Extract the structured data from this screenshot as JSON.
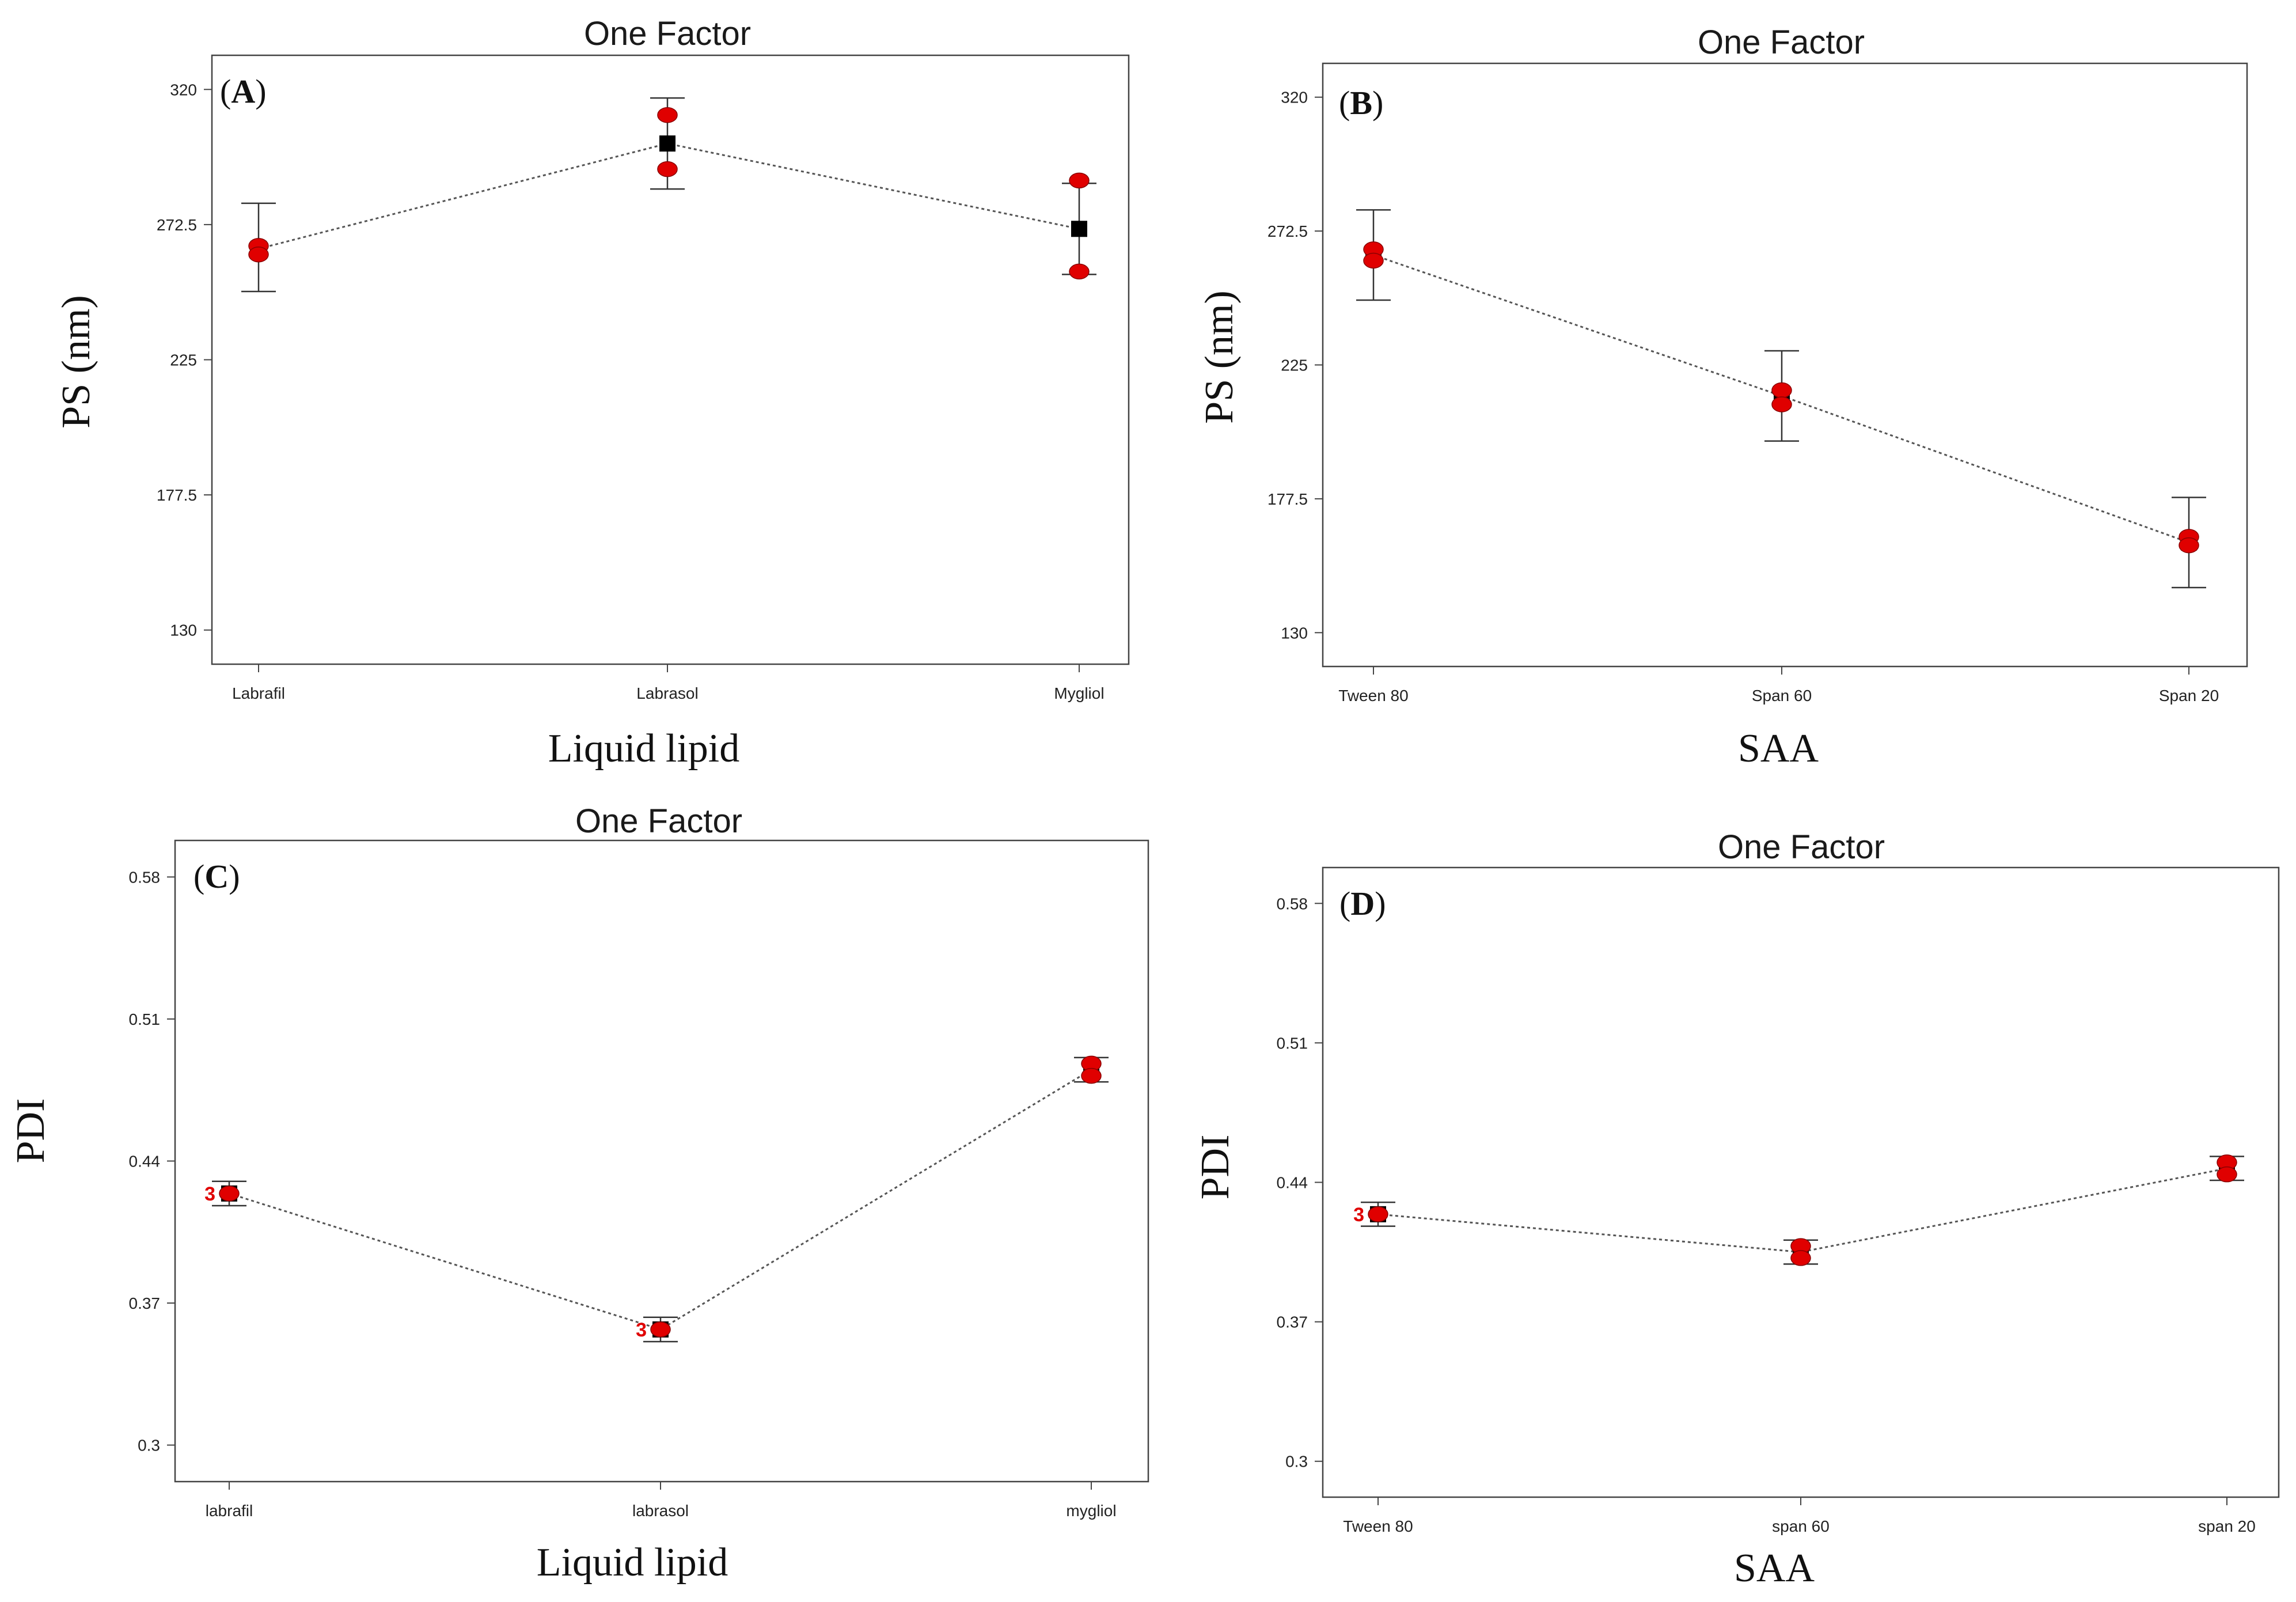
{
  "chart_data": [
    {
      "type": "line",
      "panel": "A",
      "title": "One Factor",
      "xlabel": "Liquid lipid",
      "ylabel": "PS (nm)",
      "categories": [
        "Labrafil",
        "Labrasol",
        "Mygliol"
      ],
      "y_ticks": [
        "130",
        "177.5",
        "225",
        "272.5",
        "320"
      ],
      "ylim": [
        118,
        332
      ],
      "predicted": [
        264,
        301,
        271
      ],
      "ci_low": [
        249,
        285,
        255
      ],
      "ci_high": [
        280,
        317,
        287
      ],
      "observed": [
        [
          265,
          262
        ],
        [
          311,
          292
        ],
        [
          288,
          256
        ]
      ],
      "replicate_labels": [
        "",
        "",
        ""
      ],
      "colors": {
        "point": "#e00000",
        "mean": "#000000",
        "line": "#555555"
      }
    },
    {
      "type": "line",
      "panel": "B",
      "title": "One Factor",
      "xlabel": "SAA",
      "ylabel": "PS (nm)",
      "categories": [
        "Tween 80",
        "Span 60",
        "Span 20"
      ],
      "y_ticks": [
        "130",
        "177.5",
        "225",
        "272.5",
        "320"
      ],
      "ylim": [
        118,
        332
      ],
      "predicted": [
        264,
        214,
        162
      ],
      "ci_low": [
        248,
        198,
        146
      ],
      "ci_high": [
        280,
        230,
        178
      ],
      "observed": [
        [
          266,
          262
        ],
        [
          216,
          211
        ],
        [
          164,
          161
        ]
      ],
      "replicate_labels": [
        "",
        "",
        ""
      ],
      "colors": {
        "point": "#e00000",
        "mean": "#000000",
        "line": "#555555"
      }
    },
    {
      "type": "line",
      "panel": "C",
      "title": "One Factor",
      "xlabel": "Liquid lipid",
      "ylabel": "PDI",
      "categories": [
        "labrafil",
        "labrasol",
        "mygliol"
      ],
      "y_ticks": [
        "0.3",
        "0.37",
        "0.44",
        "0.51",
        "0.58"
      ],
      "ylim": [
        0.282,
        0.598
      ],
      "predicted": [
        0.424,
        0.357,
        0.485
      ],
      "ci_low": [
        0.418,
        0.351,
        0.479
      ],
      "ci_high": [
        0.43,
        0.363,
        0.491
      ],
      "observed": [
        [
          0.424
        ],
        [
          0.357
        ],
        [
          0.488,
          0.482
        ]
      ],
      "replicate_labels": [
        "3",
        "3",
        ""
      ],
      "colors": {
        "point": "#e00000",
        "mean": "#000000",
        "line": "#555555"
      }
    },
    {
      "type": "line",
      "panel": "D",
      "title": "One Factor",
      "xlabel": "SAA",
      "ylabel": "PDI",
      "categories": [
        "Tween 80",
        "span 60",
        "span 20"
      ],
      "y_ticks": [
        "0.3",
        "0.37",
        "0.44",
        "0.51",
        "0.58"
      ],
      "ylim": [
        0.282,
        0.598
      ],
      "predicted": [
        0.424,
        0.405,
        0.447
      ],
      "ci_low": [
        0.418,
        0.399,
        0.441
      ],
      "ci_high": [
        0.43,
        0.411,
        0.453
      ],
      "observed": [
        [
          0.424
        ],
        [
          0.408,
          0.402
        ],
        [
          0.45,
          0.444
        ]
      ],
      "replicate_labels": [
        "3",
        "",
        ""
      ],
      "colors": {
        "point": "#e00000",
        "mean": "#000000",
        "line": "#555555"
      }
    }
  ]
}
